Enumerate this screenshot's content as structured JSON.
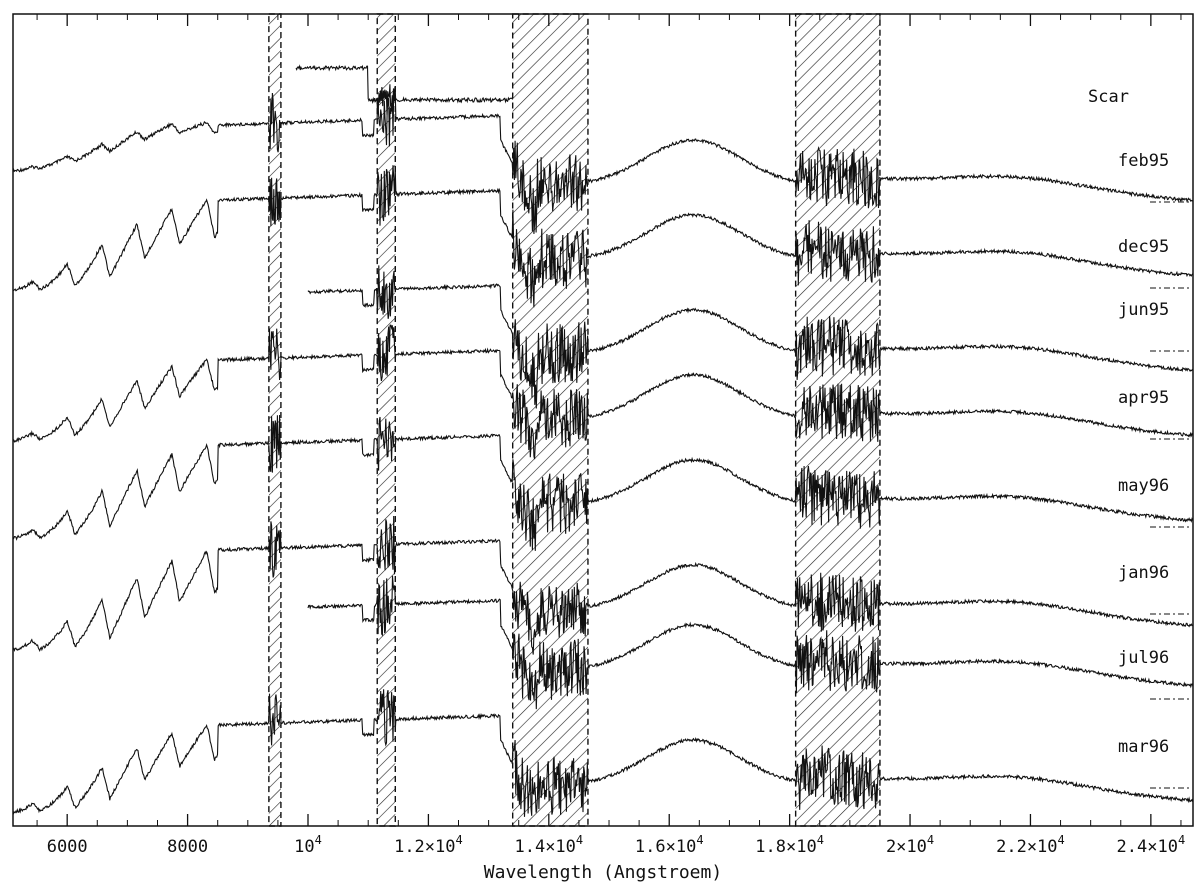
{
  "chart_data": {
    "type": "line",
    "title": "",
    "xlabel": "Wavelength (Angstroem)",
    "ylabel": "",
    "xlim": [
      5100,
      24700
    ],
    "grid": false,
    "x_ticks": [
      {
        "value": 6000,
        "label": "6000"
      },
      {
        "value": 8000,
        "label": "8000"
      },
      {
        "value": 10000,
        "label": "10",
        "exp": "4"
      },
      {
        "value": 12000,
        "label": "1.2×10",
        "exp": "4"
      },
      {
        "value": 14000,
        "label": "1.4×10",
        "exp": "4"
      },
      {
        "value": 16000,
        "label": "1.6×10",
        "exp": "4"
      },
      {
        "value": 18000,
        "label": "1.8×10",
        "exp": "4"
      },
      {
        "value": 20000,
        "label": "2×10",
        "exp": "4"
      },
      {
        "value": 22000,
        "label": "2.2×10",
        "exp": "4"
      },
      {
        "value": 24000,
        "label": "2.4×10",
        "exp": "4"
      }
    ],
    "masked_bands": [
      [
        9350,
        9550
      ],
      [
        11150,
        11450
      ],
      [
        13400,
        14650
      ],
      [
        18100,
        19500
      ]
    ],
    "star_label": "Scar",
    "series": [
      {
        "name": "feb95",
        "start": 5100
      },
      {
        "name": "dec95",
        "start": 5100
      },
      {
        "name": "jun95",
        "start": 10000
      },
      {
        "name": "apr95",
        "start": 5100
      },
      {
        "name": "may96",
        "start": 5100
      },
      {
        "name": "jan96",
        "start": 5100
      },
      {
        "name": "jul96",
        "start": 10000
      },
      {
        "name": "mar96",
        "start": 5100
      }
    ],
    "top_fragment_range": [
      9800,
      13400
    ]
  }
}
